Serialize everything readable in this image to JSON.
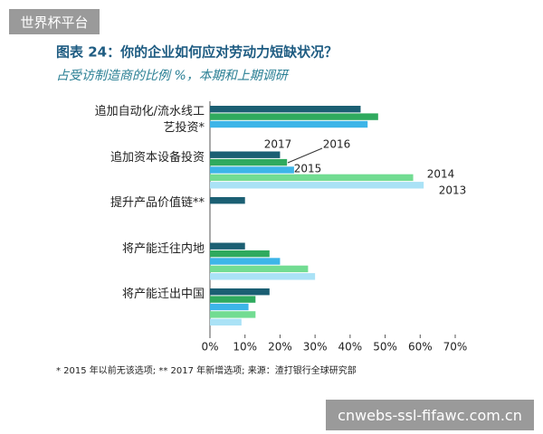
{
  "watermark_top": "世界杯平台",
  "watermark_bottom": "cnwebs-ssl-fifawc.com.cn",
  "chart_data": {
    "type": "hbar",
    "title": "图表 24：你的企业如何应对劳动力短缺状况？",
    "subtitle": "占受访制造商的比例 %，本期和上期调研",
    "footnote": "* 2015 年以前无该选项; ** 2017 年新增选项; 来源：渣打银行全球研究部",
    "categories": [
      "追加自动化/流水线工艺投资*",
      "追加资本设备投资",
      "提升产品价值链**",
      "将产能迁往内地",
      "将产能迁出中国"
    ],
    "series": [
      {
        "name": "2017",
        "color": "#1b5f73",
        "values": [
          43,
          20,
          10,
          10,
          17
        ]
      },
      {
        "name": "2016",
        "color": "#2faa5e",
        "values": [
          48,
          22,
          null,
          17,
          13
        ]
      },
      {
        "name": "2015",
        "color": "#3db5e8",
        "values": [
          45,
          24,
          null,
          20,
          11
        ]
      },
      {
        "name": "2014",
        "color": "#72dc92",
        "values": [
          null,
          58,
          null,
          28,
          13
        ]
      },
      {
        "name": "2013",
        "color": "#aae2f6",
        "values": [
          null,
          61,
          null,
          30,
          9
        ]
      }
    ],
    "xlim": [
      0,
      70
    ],
    "xticks": [
      {
        "value": 0,
        "label": "0%"
      },
      {
        "value": 10,
        "label": "10%"
      },
      {
        "value": 20,
        "label": "20%"
      },
      {
        "value": 30,
        "label": "30%"
      },
      {
        "value": 40,
        "label": "40%"
      },
      {
        "value": 50,
        "label": "50%"
      },
      {
        "value": 60,
        "label": "60%"
      },
      {
        "value": 70,
        "label": "70%"
      }
    ]
  }
}
